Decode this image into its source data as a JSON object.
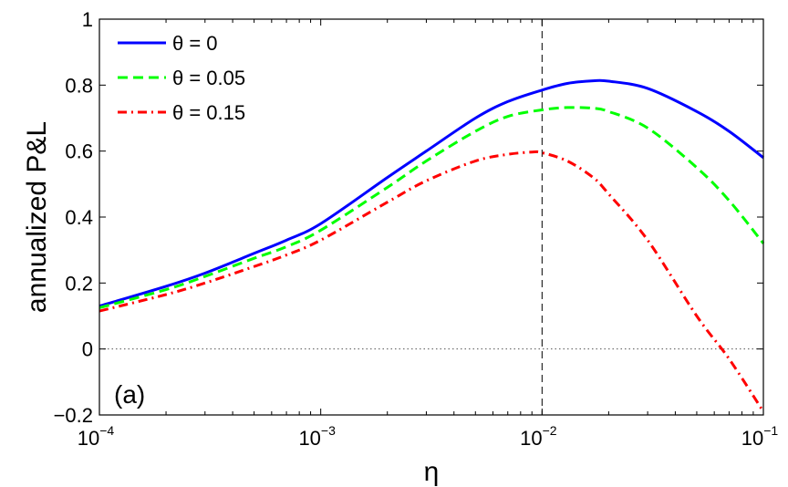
{
  "chart_data": {
    "type": "line",
    "panel_label": "(a)",
    "xlabel": "η",
    "ylabel": "annualized P&L",
    "xscale": "log",
    "xlim": [
      0.0001,
      0.1
    ],
    "ylim": [
      -0.2,
      1
    ],
    "xticks": [
      {
        "value": 0.0001,
        "base": "10",
        "exp": "−4"
      },
      {
        "value": 0.001,
        "base": "10",
        "exp": "−3"
      },
      {
        "value": 0.01,
        "base": "10",
        "exp": "−2"
      },
      {
        "value": 0.1,
        "base": "10",
        "exp": "−1"
      }
    ],
    "yticks": [
      {
        "value": -0.2,
        "label": "−0.2"
      },
      {
        "value": 0,
        "label": "0"
      },
      {
        "value": 0.2,
        "label": "0.2"
      },
      {
        "value": 0.4,
        "label": "0.4"
      },
      {
        "value": 0.6,
        "label": "0.6"
      },
      {
        "value": 0.8,
        "label": "0.8"
      },
      {
        "value": 1,
        "label": "1"
      }
    ],
    "reference_lines": {
      "vertical_x": 0.01,
      "horizontal_y": 0
    },
    "legend_position": "top-left",
    "grid": false,
    "series": [
      {
        "name": "θ = 0",
        "color": "#0000ff",
        "dash": "solid",
        "x": [
          0.0001,
          0.0002,
          0.0003,
          0.0005,
          0.0007,
          0.001,
          0.002,
          0.003,
          0.005,
          0.007,
          0.01,
          0.013,
          0.017,
          0.02,
          0.03,
          0.05,
          0.07,
          0.1
        ],
        "y": [
          0.13,
          0.19,
          0.23,
          0.29,
          0.33,
          0.38,
          0.52,
          0.6,
          0.7,
          0.75,
          0.785,
          0.805,
          0.813,
          0.812,
          0.79,
          0.72,
          0.66,
          0.58
        ]
      },
      {
        "name": "θ = 0.05",
        "color": "#00ff00",
        "dash": "dashed",
        "x": [
          0.0001,
          0.0002,
          0.0003,
          0.0005,
          0.0007,
          0.001,
          0.002,
          0.003,
          0.005,
          0.007,
          0.01,
          0.013,
          0.017,
          0.02,
          0.03,
          0.05,
          0.07,
          0.1
        ],
        "y": [
          0.125,
          0.18,
          0.22,
          0.275,
          0.31,
          0.36,
          0.49,
          0.57,
          0.66,
          0.705,
          0.725,
          0.732,
          0.73,
          0.72,
          0.67,
          0.55,
          0.45,
          0.32
        ]
      },
      {
        "name": "θ = 0.15",
        "color": "#ff0000",
        "dash": "dashdot",
        "x": [
          0.0001,
          0.0002,
          0.0003,
          0.0005,
          0.0007,
          0.001,
          0.002,
          0.003,
          0.005,
          0.007,
          0.009,
          0.01,
          0.013,
          0.017,
          0.02,
          0.03,
          0.05,
          0.07,
          0.1
        ],
        "y": [
          0.115,
          0.165,
          0.2,
          0.25,
          0.285,
          0.33,
          0.445,
          0.51,
          0.57,
          0.59,
          0.597,
          0.595,
          0.57,
          0.52,
          0.47,
          0.33,
          0.1,
          -0.03,
          -0.19
        ]
      }
    ]
  }
}
